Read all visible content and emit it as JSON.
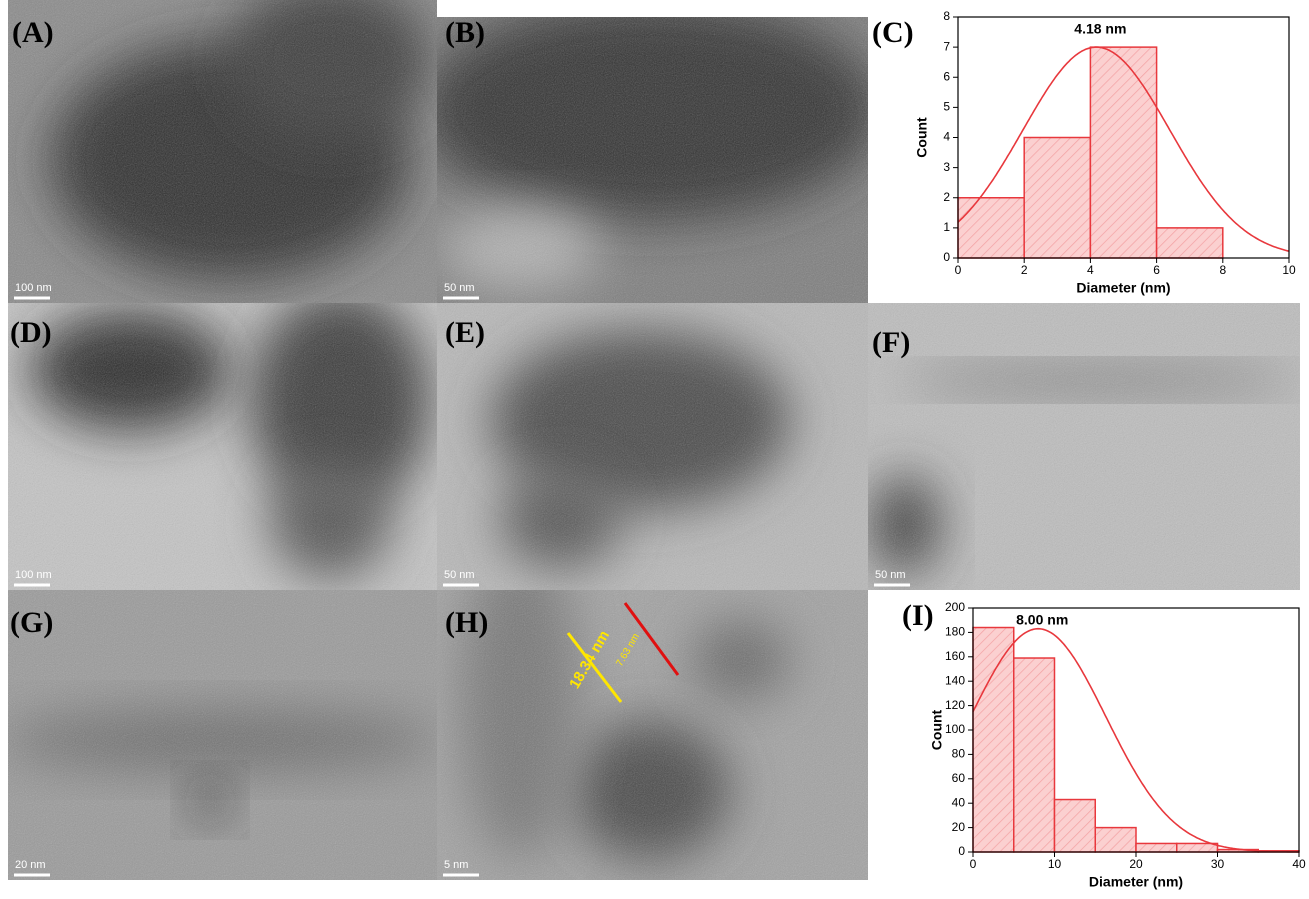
{
  "panels": [
    {
      "label": "(A)",
      "scale_bar": "100 nm"
    },
    {
      "label": "(B)",
      "scale_bar": "50 nm"
    },
    {
      "label": "(C)"
    },
    {
      "label": "(D)",
      "scale_bar": "100 nm"
    },
    {
      "label": "(E)",
      "scale_bar": "50 nm"
    },
    {
      "label": "(F)",
      "scale_bar": "50 nm"
    },
    {
      "label": "(G)",
      "scale_bar": "20 nm"
    },
    {
      "label": "(H)",
      "scale_bar": "5 nm"
    },
    {
      "label": "(I)"
    }
  ],
  "annotations": [
    "18.34 nm",
    "7.63 nm"
  ],
  "chart_data": [
    {
      "type": "histogram",
      "annotation": "4.18 nm",
      "x_label": "Diameter (nm)",
      "y_label": "Count",
      "bins": [
        0,
        2,
        4,
        6,
        8
      ],
      "values": [
        2,
        4,
        7,
        1
      ],
      "color": "#e8383d",
      "fit": {
        "center": 4.18,
        "width": 2.22,
        "height": 7
      },
      "xlim": [
        0,
        10
      ],
      "ylim": [
        0,
        8
      ],
      "xticks": [
        0,
        2,
        4,
        6,
        8,
        10
      ],
      "yticks": [
        0,
        1,
        2,
        3,
        4,
        5,
        6,
        7,
        8
      ]
    },
    {
      "type": "histogram",
      "annotation": "8.00 nm",
      "x_label": "Diameter (nm)",
      "y_label": "Count",
      "bins": [
        0,
        5,
        10,
        15,
        20,
        25,
        30,
        35,
        40
      ],
      "values": [
        184,
        159,
        43,
        20,
        7,
        7,
        2,
        1
      ],
      "color": "#e8383d",
      "fit": {
        "center": 8.0,
        "width": 8.3,
        "height": 183
      },
      "xlim": [
        0,
        40
      ],
      "ylim": [
        0,
        200
      ],
      "xticks": [
        0,
        10,
        20,
        30,
        40
      ],
      "yticks": [
        0,
        20,
        40,
        60,
        80,
        100,
        120,
        140,
        160,
        180,
        200
      ]
    }
  ]
}
